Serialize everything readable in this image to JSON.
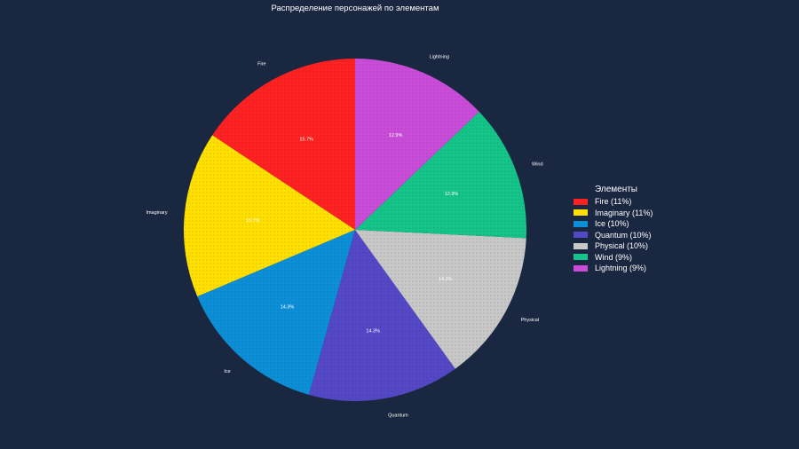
{
  "chart_data": {
    "type": "pie",
    "title": "Распределение персонажей по элементам",
    "legend_title": "Элементы",
    "legend_position": "right",
    "slices": [
      {
        "label": "Fire",
        "value": 15.7,
        "percent_label": "15.7%",
        "legend": "Fire (11%)",
        "color": "#ff2222"
      },
      {
        "label": "Imaginary",
        "value": 15.7,
        "percent_label": "15.7%",
        "legend": "Imaginary (11%)",
        "color": "#ffe000"
      },
      {
        "label": "Ice",
        "value": 14.3,
        "percent_label": "14.3%",
        "legend": "Ice (10%)",
        "color": "#0d8fd8"
      },
      {
        "label": "Quantum",
        "value": 14.3,
        "percent_label": "14.3%",
        "legend": "Quantum (10%)",
        "color": "#5448c6"
      },
      {
        "label": "Physical",
        "value": 14.3,
        "percent_label": "14.3%",
        "legend": "Physical (10%)",
        "color": "#c8c8c8"
      },
      {
        "label": "Wind",
        "value": 12.9,
        "percent_label": "12.9%",
        "legend": "Wind (9%)",
        "color": "#14c489"
      },
      {
        "label": "Lightning",
        "value": 12.9,
        "percent_label": "12.9%",
        "legend": "Lightning (9%)",
        "color": "#c94dd8"
      }
    ],
    "start_angle_deg": 90,
    "direction": "counterclockwise",
    "label_color": "#ffffff",
    "background": "#1a2740"
  }
}
